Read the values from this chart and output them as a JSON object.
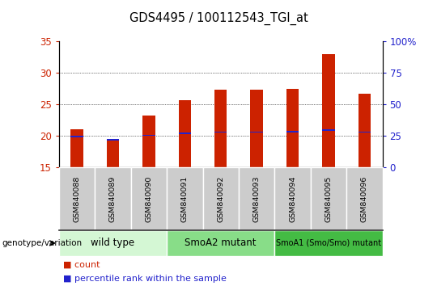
{
  "title": "GDS4495 / 100112543_TGI_at",
  "samples": [
    "GSM840088",
    "GSM840089",
    "GSM840090",
    "GSM840091",
    "GSM840092",
    "GSM840093",
    "GSM840094",
    "GSM840095",
    "GSM840096"
  ],
  "counts": [
    21.1,
    19.4,
    23.2,
    25.7,
    27.3,
    27.3,
    27.5,
    33.0,
    26.7
  ],
  "percentile_ranks": [
    19.9,
    19.4,
    20.1,
    20.4,
    20.6,
    20.6,
    20.7,
    20.9,
    20.6
  ],
  "ylim_left": [
    15,
    35
  ],
  "ylim_right": [
    0,
    100
  ],
  "yticks_left": [
    15,
    20,
    25,
    30,
    35
  ],
  "yticks_right": [
    0,
    25,
    50,
    75,
    100
  ],
  "bar_color": "#cc2200",
  "percentile_color": "#2222cc",
  "bar_width": 0.35,
  "groups": [
    {
      "label": "wild type",
      "start": 0,
      "end": 3,
      "color": "#d4f7d4"
    },
    {
      "label": "SmoA2 mutant",
      "start": 3,
      "end": 6,
      "color": "#88dd88"
    },
    {
      "label": "SmoA1 (Smo/Smo) mutant",
      "start": 6,
      "end": 9,
      "color": "#44bb44"
    }
  ],
  "group_row_label": "genotype/variation",
  "legend_count_label": "count",
  "legend_percentile_label": "percentile rank within the sample",
  "tick_label_color_left": "#cc2200",
  "tick_label_color_right": "#2222cc",
  "grid_color": "#000000",
  "bg_color": "#ffffff",
  "plot_bg_color": "#ffffff",
  "sample_box_color": "#cccccc",
  "separator_color": "#888888"
}
